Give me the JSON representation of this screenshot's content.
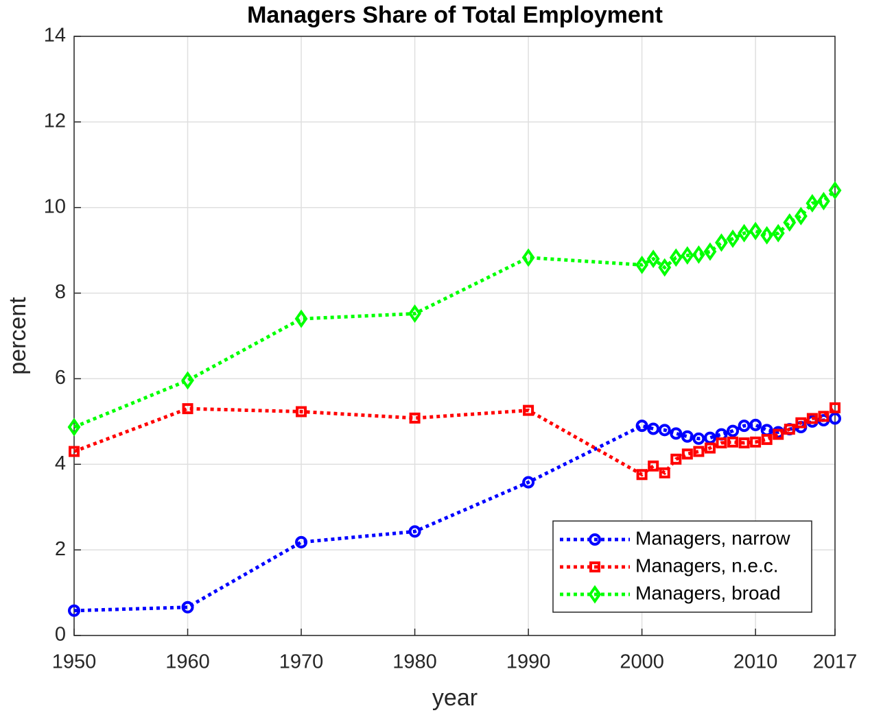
{
  "chart_data": {
    "type": "line",
    "title": "Managers Share of Total Employment",
    "x_label": "year",
    "y_label": "percent",
    "x": [
      1950,
      1960,
      1970,
      1980,
      1990,
      2000,
      2001,
      2002,
      2003,
      2004,
      2005,
      2006,
      2007,
      2008,
      2009,
      2010,
      2011,
      2012,
      2013,
      2014,
      2015,
      2016,
      2017
    ],
    "series": [
      {
        "name": "Managers, narrow",
        "color": "#0000ff",
        "marker": "o",
        "values": [
          0.58,
          0.66,
          2.18,
          2.43,
          3.58,
          4.9,
          4.83,
          4.8,
          4.72,
          4.65,
          4.6,
          4.62,
          4.7,
          4.78,
          4.9,
          4.92,
          4.8,
          4.75,
          4.82,
          4.87,
          5.0,
          5.03,
          5.07
        ]
      },
      {
        "name": "Managers, n.e.c.",
        "color": "#ff0000",
        "marker": "s",
        "values": [
          4.3,
          5.3,
          5.23,
          5.08,
          5.26,
          3.76,
          3.96,
          3.8,
          4.12,
          4.24,
          4.3,
          4.38,
          4.5,
          4.52,
          4.5,
          4.52,
          4.58,
          4.7,
          4.82,
          4.97,
          5.07,
          5.12,
          5.32
        ]
      },
      {
        "name": "Managers, broad",
        "color": "#00ff00",
        "marker": "d",
        "values": [
          4.87,
          5.96,
          7.4,
          7.52,
          8.83,
          8.66,
          8.8,
          8.6,
          8.83,
          8.88,
          8.9,
          8.97,
          9.18,
          9.27,
          9.4,
          9.45,
          9.35,
          9.4,
          9.65,
          9.8,
          10.1,
          10.15,
          10.4
        ]
      }
    ],
    "xlim": [
      1950,
      2017
    ],
    "xticks": [
      1950,
      1960,
      1970,
      1980,
      1990,
      2000,
      2010,
      2017
    ],
    "ylim": [
      0,
      14
    ],
    "yticks": [
      0,
      2,
      4,
      6,
      8,
      10,
      12,
      14
    ],
    "grid": true,
    "legend": "southeast"
  }
}
